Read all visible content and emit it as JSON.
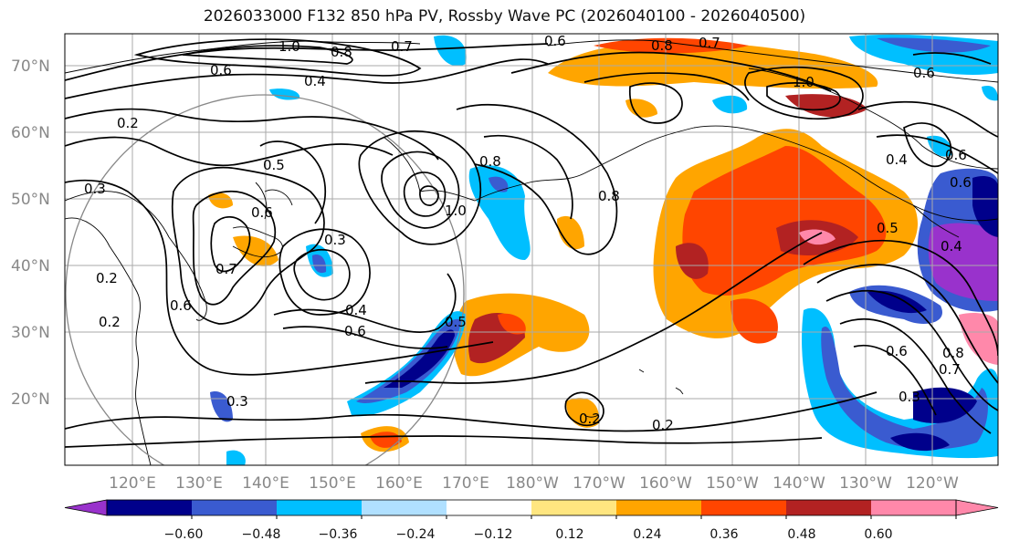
{
  "title": "2026033000 F132 850 hPa PV, Rossby Wave PC (2026040100 - 2026040500)",
  "map": {
    "lon_ticks": [
      "120°E",
      "130°E",
      "140°E",
      "150°E",
      "160°E",
      "170°E",
      "180°W",
      "170°W",
      "160°W",
      "150°W",
      "140°W",
      "130°W",
      "120°W"
    ],
    "lat_ticks": [
      "70°N",
      "60°N",
      "50°N",
      "40°N",
      "30°N",
      "20°N"
    ],
    "contour_labels": [
      "1.0",
      "0.8",
      "0.7",
      "0.6",
      "0.4",
      "0.6",
      "0.2",
      "0.3",
      "0.5",
      "0.6",
      "0.7",
      "0.2",
      "0.3",
      "0.4",
      "0.6",
      "0.5",
      "0.8",
      "1.0",
      "0.8",
      "0.6",
      "0.8",
      "0.7",
      "1.0",
      "0.6",
      "0.4",
      "0.6",
      "0.6",
      "0.5",
      "0.4",
      "0.6",
      "0.8",
      "0.7",
      "0.3",
      "0.2",
      "0.2",
      "0.2",
      "0.3"
    ]
  },
  "colorbar": {
    "ticks": [
      "−0.60",
      "−0.48",
      "−0.36",
      "−0.24",
      "−0.12",
      "0.12",
      "0.24",
      "0.36",
      "0.48",
      "0.60"
    ],
    "colors": [
      "#9932cc",
      "#00008b",
      "#3a5bd0",
      "#00bfff",
      "#b0e0ff",
      "#ffffff",
      "#ffe680",
      "#ffa500",
      "#ff4500",
      "#b22222",
      "#ff88aa",
      "#ff88aa"
    ]
  }
}
